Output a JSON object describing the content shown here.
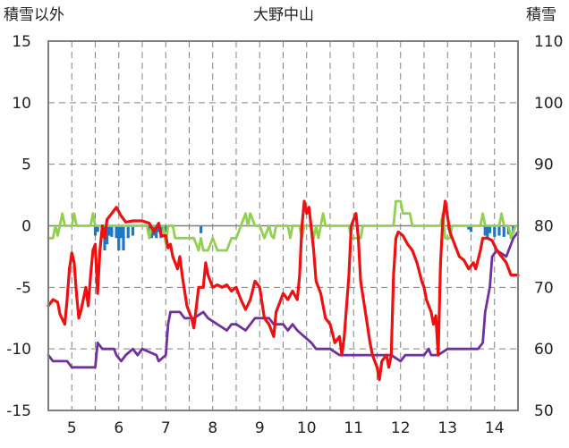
{
  "chart_data": {
    "type": "line",
    "title": "大野中山",
    "ylabel_left": "積雪以外",
    "ylabel_right": "積雪",
    "xlabel": "",
    "x_range": [
      4.5,
      14.5
    ],
    "y_left_range": [
      -15,
      15
    ],
    "y_right_range": [
      50,
      110
    ],
    "x_ticks": [
      5,
      6,
      7,
      8,
      9,
      10,
      11,
      12,
      13,
      14
    ],
    "y_left_ticks": [
      15,
      10,
      5,
      0,
      -5,
      -10,
      -15
    ],
    "y_right_ticks": [
      110,
      100,
      90,
      80,
      70,
      60,
      50
    ],
    "grid": true,
    "colors": {
      "temperature": "#ee1111",
      "snow_depth": "#7030a0",
      "temp_diff": "#92d050",
      "precip": "#1f77c4"
    },
    "series": [
      {
        "key": "temperature",
        "axis": "left",
        "points": [
          [
            4.5,
            -6.5
          ],
          [
            4.6,
            -6.0
          ],
          [
            4.7,
            -6.2
          ],
          [
            4.75,
            -7.2
          ],
          [
            4.85,
            -8.0
          ],
          [
            4.9,
            -6.0
          ],
          [
            4.95,
            -3.5
          ],
          [
            5.0,
            -2.2
          ],
          [
            5.05,
            -3.0
          ],
          [
            5.1,
            -5.5
          ],
          [
            5.15,
            -7.5
          ],
          [
            5.2,
            -6.8
          ],
          [
            5.3,
            -5.0
          ],
          [
            5.35,
            -6.5
          ],
          [
            5.4,
            -4.0
          ],
          [
            5.45,
            -2.0
          ],
          [
            5.5,
            -1.5
          ],
          [
            5.55,
            -5.5
          ],
          [
            5.6,
            -2.0
          ],
          [
            5.65,
            0.0
          ],
          [
            5.7,
            -1.0
          ],
          [
            5.75,
            0.5
          ],
          [
            5.85,
            1.0
          ],
          [
            5.95,
            1.5
          ],
          [
            6.05,
            0.8
          ],
          [
            6.15,
            0.3
          ],
          [
            6.3,
            0.4
          ],
          [
            6.5,
            0.4
          ],
          [
            6.65,
            0.2
          ],
          [
            6.75,
            -0.5
          ],
          [
            6.85,
            0.2
          ],
          [
            6.9,
            -0.8
          ],
          [
            7.0,
            -0.8
          ],
          [
            7.05,
            -1.8
          ],
          [
            7.1,
            -1.5
          ],
          [
            7.15,
            -2.5
          ],
          [
            7.2,
            -3.0
          ],
          [
            7.25,
            -3.5
          ],
          [
            7.3,
            -2.5
          ],
          [
            7.35,
            -4.0
          ],
          [
            7.45,
            -6.5
          ],
          [
            7.55,
            -7.5
          ],
          [
            7.6,
            -8.3
          ],
          [
            7.7,
            -5.0
          ],
          [
            7.8,
            -5.0
          ],
          [
            7.85,
            -3.0
          ],
          [
            7.9,
            -4.0
          ],
          [
            8.0,
            -5.0
          ],
          [
            8.1,
            -4.8
          ],
          [
            8.2,
            -5.0
          ],
          [
            8.3,
            -4.8
          ],
          [
            8.4,
            -5.3
          ],
          [
            8.5,
            -5.0
          ],
          [
            8.6,
            -6.0
          ],
          [
            8.7,
            -6.8
          ],
          [
            8.8,
            -6.0
          ],
          [
            8.9,
            -4.5
          ],
          [
            9.0,
            -5.0
          ],
          [
            9.1,
            -7.5
          ],
          [
            9.2,
            -8.0
          ],
          [
            9.3,
            -9.0
          ],
          [
            9.35,
            -7.0
          ],
          [
            9.4,
            -6.5
          ],
          [
            9.5,
            -5.5
          ],
          [
            9.6,
            -6.0
          ],
          [
            9.7,
            -5.3
          ],
          [
            9.8,
            -6.0
          ],
          [
            9.85,
            -4.0
          ],
          [
            9.9,
            0.0
          ],
          [
            9.95,
            2.0
          ],
          [
            10.0,
            1.0
          ],
          [
            10.05,
            1.5
          ],
          [
            10.15,
            -2.0
          ],
          [
            10.2,
            -4.5
          ],
          [
            10.3,
            -5.5
          ],
          [
            10.4,
            -7.5
          ],
          [
            10.5,
            -8.0
          ],
          [
            10.6,
            -9.5
          ],
          [
            10.7,
            -9.0
          ],
          [
            10.75,
            -10.5
          ],
          [
            10.8,
            -9.0
          ],
          [
            10.9,
            -4.0
          ],
          [
            10.95,
            0.0
          ],
          [
            11.05,
            1.0
          ],
          [
            11.1,
            -1.0
          ],
          [
            11.15,
            -4.5
          ],
          [
            11.25,
            -7.0
          ],
          [
            11.35,
            -9.5
          ],
          [
            11.4,
            -10.5
          ],
          [
            11.5,
            -11.5
          ],
          [
            11.55,
            -12.5
          ],
          [
            11.6,
            -11.0
          ],
          [
            11.7,
            -10.5
          ],
          [
            11.75,
            -11.5
          ],
          [
            11.8,
            -10.5
          ],
          [
            11.85,
            -4.0
          ],
          [
            11.9,
            -1.0
          ],
          [
            11.95,
            -0.5
          ],
          [
            12.05,
            -0.8
          ],
          [
            12.15,
            -1.5
          ],
          [
            12.25,
            -2.0
          ],
          [
            12.35,
            -3.0
          ],
          [
            12.45,
            -4.5
          ],
          [
            12.5,
            -5.0
          ],
          [
            12.55,
            -6.0
          ],
          [
            12.65,
            -7.0
          ],
          [
            12.7,
            -8.0
          ],
          [
            12.75,
            -7.3
          ],
          [
            12.8,
            -10.5
          ],
          [
            12.85,
            -3.0
          ],
          [
            12.9,
            0.5
          ],
          [
            12.95,
            2.0
          ],
          [
            13.05,
            -0.5
          ],
          [
            13.15,
            -1.5
          ],
          [
            13.25,
            -2.5
          ],
          [
            13.35,
            -2.8
          ],
          [
            13.45,
            -3.5
          ],
          [
            13.55,
            -3.0
          ],
          [
            13.6,
            -3.5
          ],
          [
            13.7,
            -2.0
          ],
          [
            13.75,
            -1.0
          ],
          [
            13.85,
            -1.0
          ],
          [
            13.95,
            -1.2
          ],
          [
            14.05,
            -2.0
          ],
          [
            14.15,
            -2.5
          ],
          [
            14.25,
            -3.0
          ],
          [
            14.3,
            -3.5
          ],
          [
            14.35,
            -4.0
          ],
          [
            14.5,
            -4.0
          ]
        ]
      },
      {
        "key": "snow_depth",
        "axis": "right",
        "points": [
          [
            4.5,
            59
          ],
          [
            4.6,
            58
          ],
          [
            4.9,
            58
          ],
          [
            5.0,
            57
          ],
          [
            5.5,
            57
          ],
          [
            5.55,
            61
          ],
          [
            5.65,
            60
          ],
          [
            5.9,
            60
          ],
          [
            5.95,
            59
          ],
          [
            6.05,
            58
          ],
          [
            6.15,
            59
          ],
          [
            6.3,
            60
          ],
          [
            6.4,
            59
          ],
          [
            6.5,
            60
          ],
          [
            6.8,
            59
          ],
          [
            6.85,
            58
          ],
          [
            7.0,
            59
          ],
          [
            7.05,
            64
          ],
          [
            7.1,
            66
          ],
          [
            7.3,
            66
          ],
          [
            7.4,
            65
          ],
          [
            7.6,
            65
          ],
          [
            7.8,
            66
          ],
          [
            7.9,
            65
          ],
          [
            8.3,
            63
          ],
          [
            8.4,
            64
          ],
          [
            8.5,
            64
          ],
          [
            8.7,
            63
          ],
          [
            8.9,
            65
          ],
          [
            9.0,
            65
          ],
          [
            9.2,
            65
          ],
          [
            9.3,
            64
          ],
          [
            9.5,
            64
          ],
          [
            9.6,
            63
          ],
          [
            9.7,
            64
          ],
          [
            9.8,
            63
          ],
          [
            10.1,
            61
          ],
          [
            10.2,
            60
          ],
          [
            10.5,
            60
          ],
          [
            10.7,
            59
          ],
          [
            11.0,
            59
          ],
          [
            11.8,
            59
          ],
          [
            12.0,
            58
          ],
          [
            12.1,
            59
          ],
          [
            12.5,
            59
          ],
          [
            12.6,
            60
          ],
          [
            12.65,
            59
          ],
          [
            12.8,
            59
          ],
          [
            13.0,
            60
          ],
          [
            13.65,
            60
          ],
          [
            13.75,
            61
          ],
          [
            13.8,
            66
          ],
          [
            13.9,
            70
          ],
          [
            13.95,
            75
          ],
          [
            14.05,
            76
          ],
          [
            14.25,
            75
          ],
          [
            14.4,
            78
          ],
          [
            14.5,
            79
          ]
        ]
      },
      {
        "key": "temp_diff",
        "axis": "left",
        "points": [
          [
            4.5,
            -1.0
          ],
          [
            4.6,
            -1.0
          ],
          [
            4.65,
            0.0
          ],
          [
            4.7,
            -0.8
          ],
          [
            4.8,
            1.0
          ],
          [
            4.85,
            0.0
          ],
          [
            5.0,
            0.0
          ],
          [
            5.05,
            1.0
          ],
          [
            5.1,
            0.0
          ],
          [
            5.4,
            0.0
          ],
          [
            5.45,
            1.0
          ],
          [
            5.5,
            0.0
          ],
          [
            6.6,
            0.0
          ],
          [
            6.65,
            -1.0
          ],
          [
            6.7,
            0.0
          ],
          [
            6.95,
            0.0
          ],
          [
            7.0,
            -1.5
          ],
          [
            7.05,
            0.0
          ],
          [
            7.15,
            0.0
          ],
          [
            7.2,
            -1.0
          ],
          [
            7.6,
            -1.0
          ],
          [
            7.7,
            -2.0
          ],
          [
            7.75,
            -1.0
          ],
          [
            7.8,
            -2.0
          ],
          [
            7.9,
            -2.0
          ],
          [
            8.0,
            -1.0
          ],
          [
            8.1,
            -2.0
          ],
          [
            8.3,
            -2.0
          ],
          [
            8.4,
            -1.0
          ],
          [
            8.5,
            -1.0
          ],
          [
            8.6,
            0.0
          ],
          [
            8.7,
            1.0
          ],
          [
            8.75,
            0.0
          ],
          [
            8.8,
            1.0
          ],
          [
            8.9,
            0.0
          ],
          [
            9.0,
            0.0
          ],
          [
            9.1,
            -1.0
          ],
          [
            9.2,
            0.0
          ],
          [
            9.25,
            -0.8
          ],
          [
            9.3,
            -1.0
          ],
          [
            9.35,
            0.0
          ],
          [
            9.6,
            0.0
          ],
          [
            9.65,
            -1.0
          ],
          [
            9.7,
            0.0
          ],
          [
            9.85,
            0.0
          ],
          [
            9.9,
            -1.0
          ],
          [
            9.95,
            0.0
          ],
          [
            10.1,
            0.0
          ],
          [
            10.15,
            -1.0
          ],
          [
            10.2,
            0.0
          ],
          [
            10.25,
            -1.0
          ],
          [
            10.3,
            0.0
          ],
          [
            10.35,
            1.0
          ],
          [
            10.4,
            0.0
          ],
          [
            10.9,
            0.0
          ],
          [
            10.95,
            -1.0
          ],
          [
            11.15,
            -1.0
          ],
          [
            11.2,
            0.0
          ],
          [
            11.85,
            0.0
          ],
          [
            11.9,
            2.0
          ],
          [
            12.0,
            2.0
          ],
          [
            12.05,
            1.0
          ],
          [
            12.2,
            1.0
          ],
          [
            12.25,
            0.0
          ],
          [
            12.85,
            0.0
          ],
          [
            12.9,
            1.0
          ],
          [
            12.95,
            -1.0
          ],
          [
            13.05,
            -1.0
          ],
          [
            13.1,
            0.0
          ],
          [
            13.7,
            0.0
          ],
          [
            13.75,
            1.0
          ],
          [
            13.8,
            0.0
          ],
          [
            14.1,
            0.0
          ],
          [
            14.15,
            1.0
          ],
          [
            14.2,
            0.0
          ],
          [
            14.3,
            0.0
          ],
          [
            14.35,
            -1.0
          ],
          [
            14.45,
            0.0
          ],
          [
            14.5,
            0.0
          ]
        ]
      },
      {
        "key": "precip",
        "axis": "left",
        "bars": [
          [
            5.5,
            -0.8
          ],
          [
            5.55,
            -0.5
          ],
          [
            5.65,
            -1.0
          ],
          [
            5.7,
            -2.0
          ],
          [
            5.75,
            -1.5
          ],
          [
            5.8,
            -0.8
          ],
          [
            5.85,
            -0.9
          ],
          [
            5.95,
            -1.0
          ],
          [
            6.0,
            -2.0
          ],
          [
            6.05,
            -1.0
          ],
          [
            6.1,
            -2.0
          ],
          [
            6.2,
            -1.0
          ],
          [
            6.3,
            -0.8
          ],
          [
            6.65,
            -0.5
          ],
          [
            6.7,
            -1.0
          ],
          [
            6.75,
            -0.8
          ],
          [
            6.8,
            -1.0
          ],
          [
            6.85,
            -0.5
          ],
          [
            6.9,
            -1.0
          ],
          [
            7.0,
            -0.5
          ],
          [
            7.75,
            -0.6
          ],
          [
            13.45,
            -0.3
          ],
          [
            13.5,
            -0.5
          ],
          [
            13.8,
            -0.8
          ],
          [
            13.85,
            -1.0
          ],
          [
            13.9,
            -0.6
          ],
          [
            14.0,
            -0.9
          ],
          [
            14.1,
            -0.8
          ],
          [
            14.2,
            -0.9
          ],
          [
            14.3,
            -0.7
          ],
          [
            14.4,
            -0.6
          ]
        ]
      }
    ]
  }
}
